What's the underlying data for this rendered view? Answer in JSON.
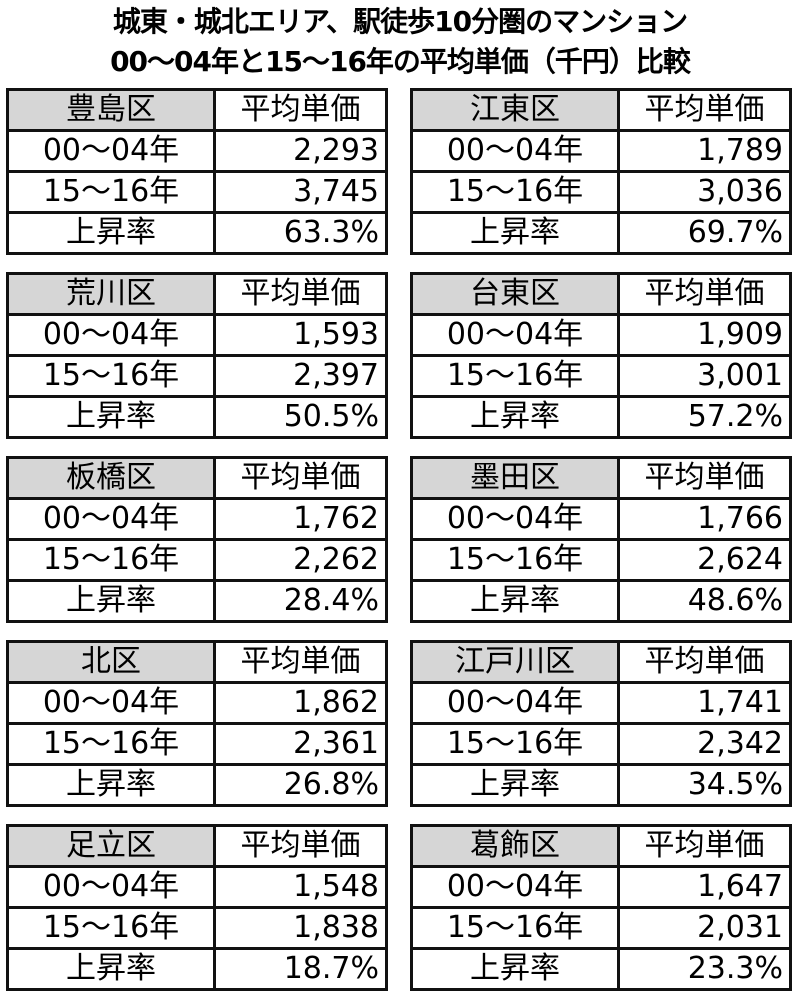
{
  "title": {
    "line1": "城東・城北エリア、駅徒歩10分圏のマンション",
    "line2": "00～04年と15～16年の平均単価（千円）比較"
  },
  "header_value_label": "平均単価",
  "row_labels": [
    "00～04年",
    "15～16年",
    "上昇率"
  ],
  "header_color": "#d6d6d6",
  "wards": [
    {
      "name": "豊島区",
      "values": [
        "2,293",
        "3,745",
        "63.3%"
      ]
    },
    {
      "name": "江東区",
      "values": [
        "1,789",
        "3,036",
        "69.7%"
      ]
    },
    {
      "name": "荒川区",
      "values": [
        "1,593",
        "2,397",
        "50.5%"
      ]
    },
    {
      "name": "台東区",
      "values": [
        "1,909",
        "3,001",
        "57.2%"
      ]
    },
    {
      "name": "板橋区",
      "values": [
        "1,762",
        "2,262",
        "28.4%"
      ]
    },
    {
      "name": "墨田区",
      "values": [
        "1,766",
        "2,624",
        "48.6%"
      ]
    },
    {
      "name": "北区",
      "values": [
        "1,862",
        "2,361",
        "26.8%"
      ]
    },
    {
      "name": "江戸川区",
      "values": [
        "1,741",
        "2,342",
        "34.5%"
      ]
    },
    {
      "name": "足立区",
      "values": [
        "1,548",
        "1,838",
        "18.7%"
      ]
    },
    {
      "name": "葛飾区",
      "values": [
        "1,647",
        "2,031",
        "23.3%"
      ]
    }
  ]
}
